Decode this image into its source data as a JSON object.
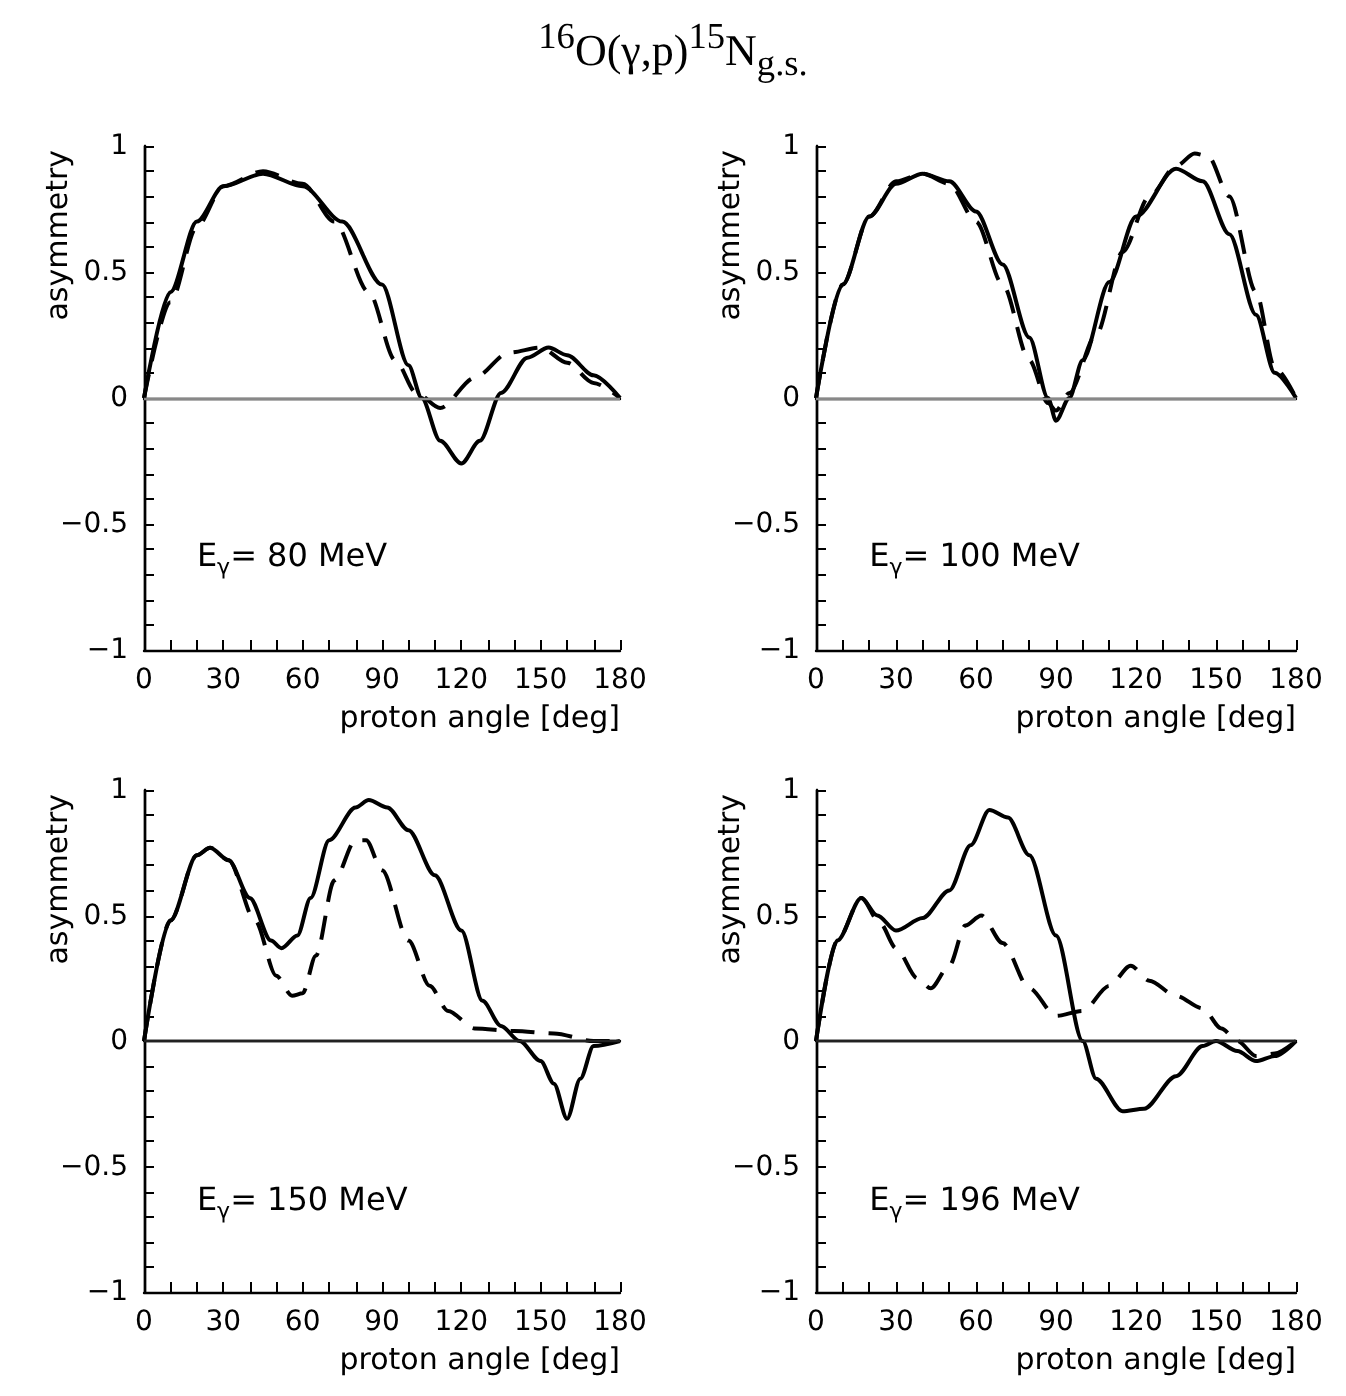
{
  "chart_data": [
    {
      "type": "line",
      "title": "$^{16}$O(γ,p)$^{15}$N$_{g.s.}$",
      "xlabel": "proton angle [deg]",
      "ylabel": "asymmetry",
      "annotations": [
        "E$_{γ}$= 80 MeV"
      ],
      "xlim": [
        0,
        180
      ],
      "ylim": [
        -1,
        1
      ],
      "xticks": [
        0,
        {
          "value": 10,
          "label": null
        },
        {
          "value": 20,
          "label": null
        },
        30,
        {
          "value": 40,
          "label": null
        },
        {
          "value": 50,
          "label": null
        },
        60,
        {
          "value": 70,
          "label": null
        },
        {
          "value": 80,
          "label": null
        },
        90,
        {
          "value": 100,
          "label": null
        },
        {
          "value": 110,
          "label": null
        },
        120,
        {
          "value": 130,
          "label": null
        },
        {
          "value": 140,
          "label": null
        },
        150,
        {
          "value": 160,
          "label": null
        },
        {
          "value": 170,
          "label": null
        },
        180
      ],
      "yticks": [
        -1,
        {
          "value": -0.9,
          "label": null
        },
        {
          "value": -0.8,
          "label": null
        },
        {
          "value": -0.7,
          "label": null
        },
        {
          "value": -0.6,
          "label": null
        },
        -0.5,
        {
          "value": -0.4,
          "label": null
        },
        {
          "value": -0.3,
          "label": null
        },
        {
          "value": -0.2,
          "label": null
        },
        {
          "value": -0.1,
          "label": null
        },
        0,
        {
          "value": 0.1,
          "label": null
        },
        {
          "value": 0.2,
          "label": null
        },
        {
          "value": 0.3,
          "label": null
        },
        {
          "value": 0.4,
          "label": null
        },
        0.5,
        {
          "value": 0.6,
          "label": null
        },
        {
          "value": 0.7,
          "label": null
        },
        {
          "value": 0.8,
          "label": null
        },
        {
          "value": 0.9,
          "label": null
        },
        1
      ],
      "grid": false,
      "marker": "none",
      "ref_lines": [
        {
          "axis": "y",
          "value": 0,
          "color": "#888888"
        }
      ],
      "series": [
        {
          "color": "#000000",
          "line_style": "solid",
          "x": [
            0,
            10,
            20,
            30,
            45,
            60,
            75,
            90,
            100,
            105,
            112,
            120,
            127,
            135,
            145,
            153,
            160,
            170,
            180
          ],
          "values": [
            0,
            0.42,
            0.7,
            0.84,
            0.89,
            0.84,
            0.7,
            0.45,
            0.13,
            0,
            -0.17,
            -0.26,
            -0.17,
            0.02,
            0.16,
            0.2,
            0.17,
            0.09,
            0
          ]
        },
        {
          "color": "#000000",
          "line_style": "dashed",
          "x": [
            0,
            10,
            20,
            30,
            45,
            60,
            72,
            85,
            95,
            103,
            112,
            125,
            138,
            150,
            160,
            170,
            180
          ],
          "values": [
            0,
            0.38,
            0.68,
            0.84,
            0.9,
            0.85,
            0.7,
            0.42,
            0.15,
            0.02,
            -0.04,
            0.08,
            0.18,
            0.2,
            0.14,
            0.06,
            0
          ]
        }
      ]
    },
    {
      "type": "line",
      "xlabel": "proton angle [deg]",
      "ylabel": "asymmetry",
      "annotations": [
        "E$_{γ}$= 100 MeV"
      ],
      "xlim": [
        0,
        180
      ],
      "ylim": [
        -1,
        1
      ],
      "xticks": [
        0,
        {
          "value": 10,
          "label": null
        },
        {
          "value": 20,
          "label": null
        },
        30,
        {
          "value": 40,
          "label": null
        },
        {
          "value": 50,
          "label": null
        },
        60,
        {
          "value": 70,
          "label": null
        },
        {
          "value": 80,
          "label": null
        },
        90,
        {
          "value": 100,
          "label": null
        },
        {
          "value": 110,
          "label": null
        },
        120,
        {
          "value": 130,
          "label": null
        },
        {
          "value": 140,
          "label": null
        },
        150,
        {
          "value": 160,
          "label": null
        },
        {
          "value": 170,
          "label": null
        },
        180
      ],
      "yticks": [
        -1,
        {
          "value": -0.9,
          "label": null
        },
        {
          "value": -0.8,
          "label": null
        },
        {
          "value": -0.7,
          "label": null
        },
        {
          "value": -0.6,
          "label": null
        },
        -0.5,
        {
          "value": -0.4,
          "label": null
        },
        {
          "value": -0.3,
          "label": null
        },
        {
          "value": -0.2,
          "label": null
        },
        {
          "value": -0.1,
          "label": null
        },
        0,
        {
          "value": 0.1,
          "label": null
        },
        {
          "value": 0.2,
          "label": null
        },
        {
          "value": 0.3,
          "label": null
        },
        {
          "value": 0.4,
          "label": null
        },
        0.5,
        {
          "value": 0.6,
          "label": null
        },
        {
          "value": 0.7,
          "label": null
        },
        {
          "value": 0.8,
          "label": null
        },
        {
          "value": 0.9,
          "label": null
        },
        1
      ],
      "grid": false,
      "marker": "none",
      "ref_lines": [
        {
          "axis": "y",
          "value": 0,
          "color": "#888888"
        }
      ],
      "series": [
        {
          "color": "#000000",
          "line_style": "solid",
          "x": [
            0,
            10,
            20,
            30,
            40,
            50,
            60,
            70,
            80,
            87,
            90,
            95,
            100,
            110,
            120,
            135,
            145,
            155,
            165,
            172,
            180
          ],
          "values": [
            0,
            0.45,
            0.72,
            0.85,
            0.89,
            0.86,
            0.74,
            0.53,
            0.24,
            0,
            -0.09,
            0,
            0.15,
            0.46,
            0.72,
            0.91,
            0.86,
            0.65,
            0.33,
            0.1,
            0
          ]
        },
        {
          "color": "#000000",
          "line_style": "dashed",
          "x": [
            0,
            10,
            20,
            30,
            40,
            50,
            60,
            70,
            80,
            87,
            90,
            95,
            105,
            115,
            125,
            135,
            142,
            147,
            155,
            165,
            172,
            180
          ],
          "values": [
            0,
            0.45,
            0.72,
            0.86,
            0.89,
            0.85,
            0.7,
            0.45,
            0.15,
            -0.02,
            -0.05,
            0.02,
            0.25,
            0.58,
            0.8,
            0.92,
            0.97,
            0.96,
            0.8,
            0.42,
            0.12,
            0
          ]
        }
      ]
    },
    {
      "type": "line",
      "xlabel": "proton angle [deg]",
      "ylabel": "asymmetry",
      "annotations": [
        "E$_{γ}$= 150 MeV"
      ],
      "xlim": [
        0,
        180
      ],
      "ylim": [
        -1,
        1
      ],
      "xticks": [
        0,
        {
          "value": 10,
          "label": null
        },
        {
          "value": 20,
          "label": null
        },
        30,
        {
          "value": 40,
          "label": null
        },
        {
          "value": 50,
          "label": null
        },
        60,
        {
          "value": 70,
          "label": null
        },
        {
          "value": 80,
          "label": null
        },
        90,
        {
          "value": 100,
          "label": null
        },
        {
          "value": 110,
          "label": null
        },
        120,
        {
          "value": 130,
          "label": null
        },
        {
          "value": 140,
          "label": null
        },
        150,
        {
          "value": 160,
          "label": null
        },
        {
          "value": 170,
          "label": null
        },
        180
      ],
      "yticks": [
        -1,
        {
          "value": -0.9,
          "label": null
        },
        {
          "value": -0.8,
          "label": null
        },
        {
          "value": -0.7,
          "label": null
        },
        {
          "value": -0.6,
          "label": null
        },
        -0.5,
        {
          "value": -0.4,
          "label": null
        },
        {
          "value": -0.3,
          "label": null
        },
        {
          "value": -0.2,
          "label": null
        },
        {
          "value": -0.1,
          "label": null
        },
        0,
        {
          "value": 0.1,
          "label": null
        },
        {
          "value": 0.2,
          "label": null
        },
        {
          "value": 0.3,
          "label": null
        },
        {
          "value": 0.4,
          "label": null
        },
        0.5,
        {
          "value": 0.6,
          "label": null
        },
        {
          "value": 0.7,
          "label": null
        },
        {
          "value": 0.8,
          "label": null
        },
        {
          "value": 0.9,
          "label": null
        },
        1
      ],
      "grid": false,
      "marker": "none",
      "ref_lines": [
        {
          "axis": "y",
          "value": 0,
          "color": "#222222"
        }
      ],
      "series": [
        {
          "color": "#000000",
          "line_style": "solid",
          "x": [
            0,
            10,
            20,
            25,
            32,
            40,
            48,
            52,
            58,
            63,
            70,
            80,
            85,
            92,
            100,
            110,
            120,
            128,
            135,
            142,
            150,
            155,
            160,
            165,
            170,
            180
          ],
          "values": [
            0,
            0.48,
            0.74,
            0.77,
            0.72,
            0.57,
            0.4,
            0.37,
            0.42,
            0.57,
            0.8,
            0.93,
            0.96,
            0.93,
            0.84,
            0.66,
            0.44,
            0.16,
            0.06,
            0,
            -0.08,
            -0.17,
            -0.31,
            -0.15,
            -0.02,
            0
          ]
        },
        {
          "color": "#000000",
          "line_style": "dashed",
          "x": [
            0,
            10,
            20,
            25,
            32,
            42,
            50,
            56,
            60,
            65,
            72,
            80,
            84,
            90,
            100,
            108,
            115,
            125,
            140,
            155,
            170,
            180
          ],
          "values": [
            0,
            0.48,
            0.74,
            0.77,
            0.72,
            0.48,
            0.26,
            0.18,
            0.19,
            0.34,
            0.64,
            0.8,
            0.8,
            0.68,
            0.4,
            0.22,
            0.12,
            0.05,
            0.04,
            0.03,
            0,
            0
          ]
        }
      ]
    },
    {
      "type": "line",
      "xlabel": "proton angle [deg]",
      "ylabel": "asymmetry",
      "annotations": [
        "E$_{γ}$= 196 MeV"
      ],
      "xlim": [
        0,
        180
      ],
      "ylim": [
        -1,
        1
      ],
      "xticks": [
        0,
        {
          "value": 10,
          "label": null
        },
        {
          "value": 20,
          "label": null
        },
        30,
        {
          "value": 40,
          "label": null
        },
        {
          "value": 50,
          "label": null
        },
        60,
        {
          "value": 70,
          "label": null
        },
        {
          "value": 80,
          "label": null
        },
        90,
        {
          "value": 100,
          "label": null
        },
        {
          "value": 110,
          "label": null
        },
        120,
        {
          "value": 130,
          "label": null
        },
        {
          "value": 140,
          "label": null
        },
        150,
        {
          "value": 160,
          "label": null
        },
        {
          "value": 170,
          "label": null
        },
        180
      ],
      "yticks": [
        -1,
        {
          "value": -0.9,
          "label": null
        },
        {
          "value": -0.8,
          "label": null
        },
        {
          "value": -0.7,
          "label": null
        },
        {
          "value": -0.6,
          "label": null
        },
        -0.5,
        {
          "value": -0.4,
          "label": null
        },
        {
          "value": -0.3,
          "label": null
        },
        {
          "value": -0.2,
          "label": null
        },
        {
          "value": -0.1,
          "label": null
        },
        0,
        {
          "value": 0.1,
          "label": null
        },
        {
          "value": 0.2,
          "label": null
        },
        {
          "value": 0.3,
          "label": null
        },
        {
          "value": 0.4,
          "label": null
        },
        0.5,
        {
          "value": 0.6,
          "label": null
        },
        {
          "value": 0.7,
          "label": null
        },
        {
          "value": 0.8,
          "label": null
        },
        {
          "value": 0.9,
          "label": null
        },
        1
      ],
      "grid": false,
      "marker": "none",
      "ref_lines": [
        {
          "axis": "y",
          "value": 0,
          "color": "#222222"
        }
      ],
      "series": [
        {
          "color": "#000000",
          "line_style": "solid",
          "x": [
            0,
            8,
            17,
            23,
            30,
            40,
            50,
            58,
            65,
            72,
            80,
            90,
            100,
            105,
            115,
            123,
            135,
            145,
            150,
            158,
            165,
            172,
            180
          ],
          "values": [
            0,
            0.4,
            0.57,
            0.5,
            0.44,
            0.49,
            0.6,
            0.78,
            0.92,
            0.89,
            0.74,
            0.42,
            0,
            -0.15,
            -0.28,
            -0.27,
            -0.14,
            -0.02,
            0,
            -0.04,
            -0.08,
            -0.06,
            0
          ]
        },
        {
          "color": "#000000",
          "line_style": "dashed",
          "x": [
            0,
            8,
            17,
            24,
            30,
            38,
            43,
            50,
            56,
            62,
            70,
            80,
            90,
            100,
            110,
            118,
            125,
            135,
            145,
            152,
            158,
            165,
            172,
            180
          ],
          "values": [
            0,
            0.4,
            0.57,
            0.47,
            0.37,
            0.25,
            0.21,
            0.3,
            0.46,
            0.5,
            0.39,
            0.21,
            0.1,
            0.12,
            0.22,
            0.3,
            0.24,
            0.18,
            0.13,
            0.05,
            0,
            -0.06,
            -0.05,
            0
          ]
        }
      ]
    }
  ]
}
